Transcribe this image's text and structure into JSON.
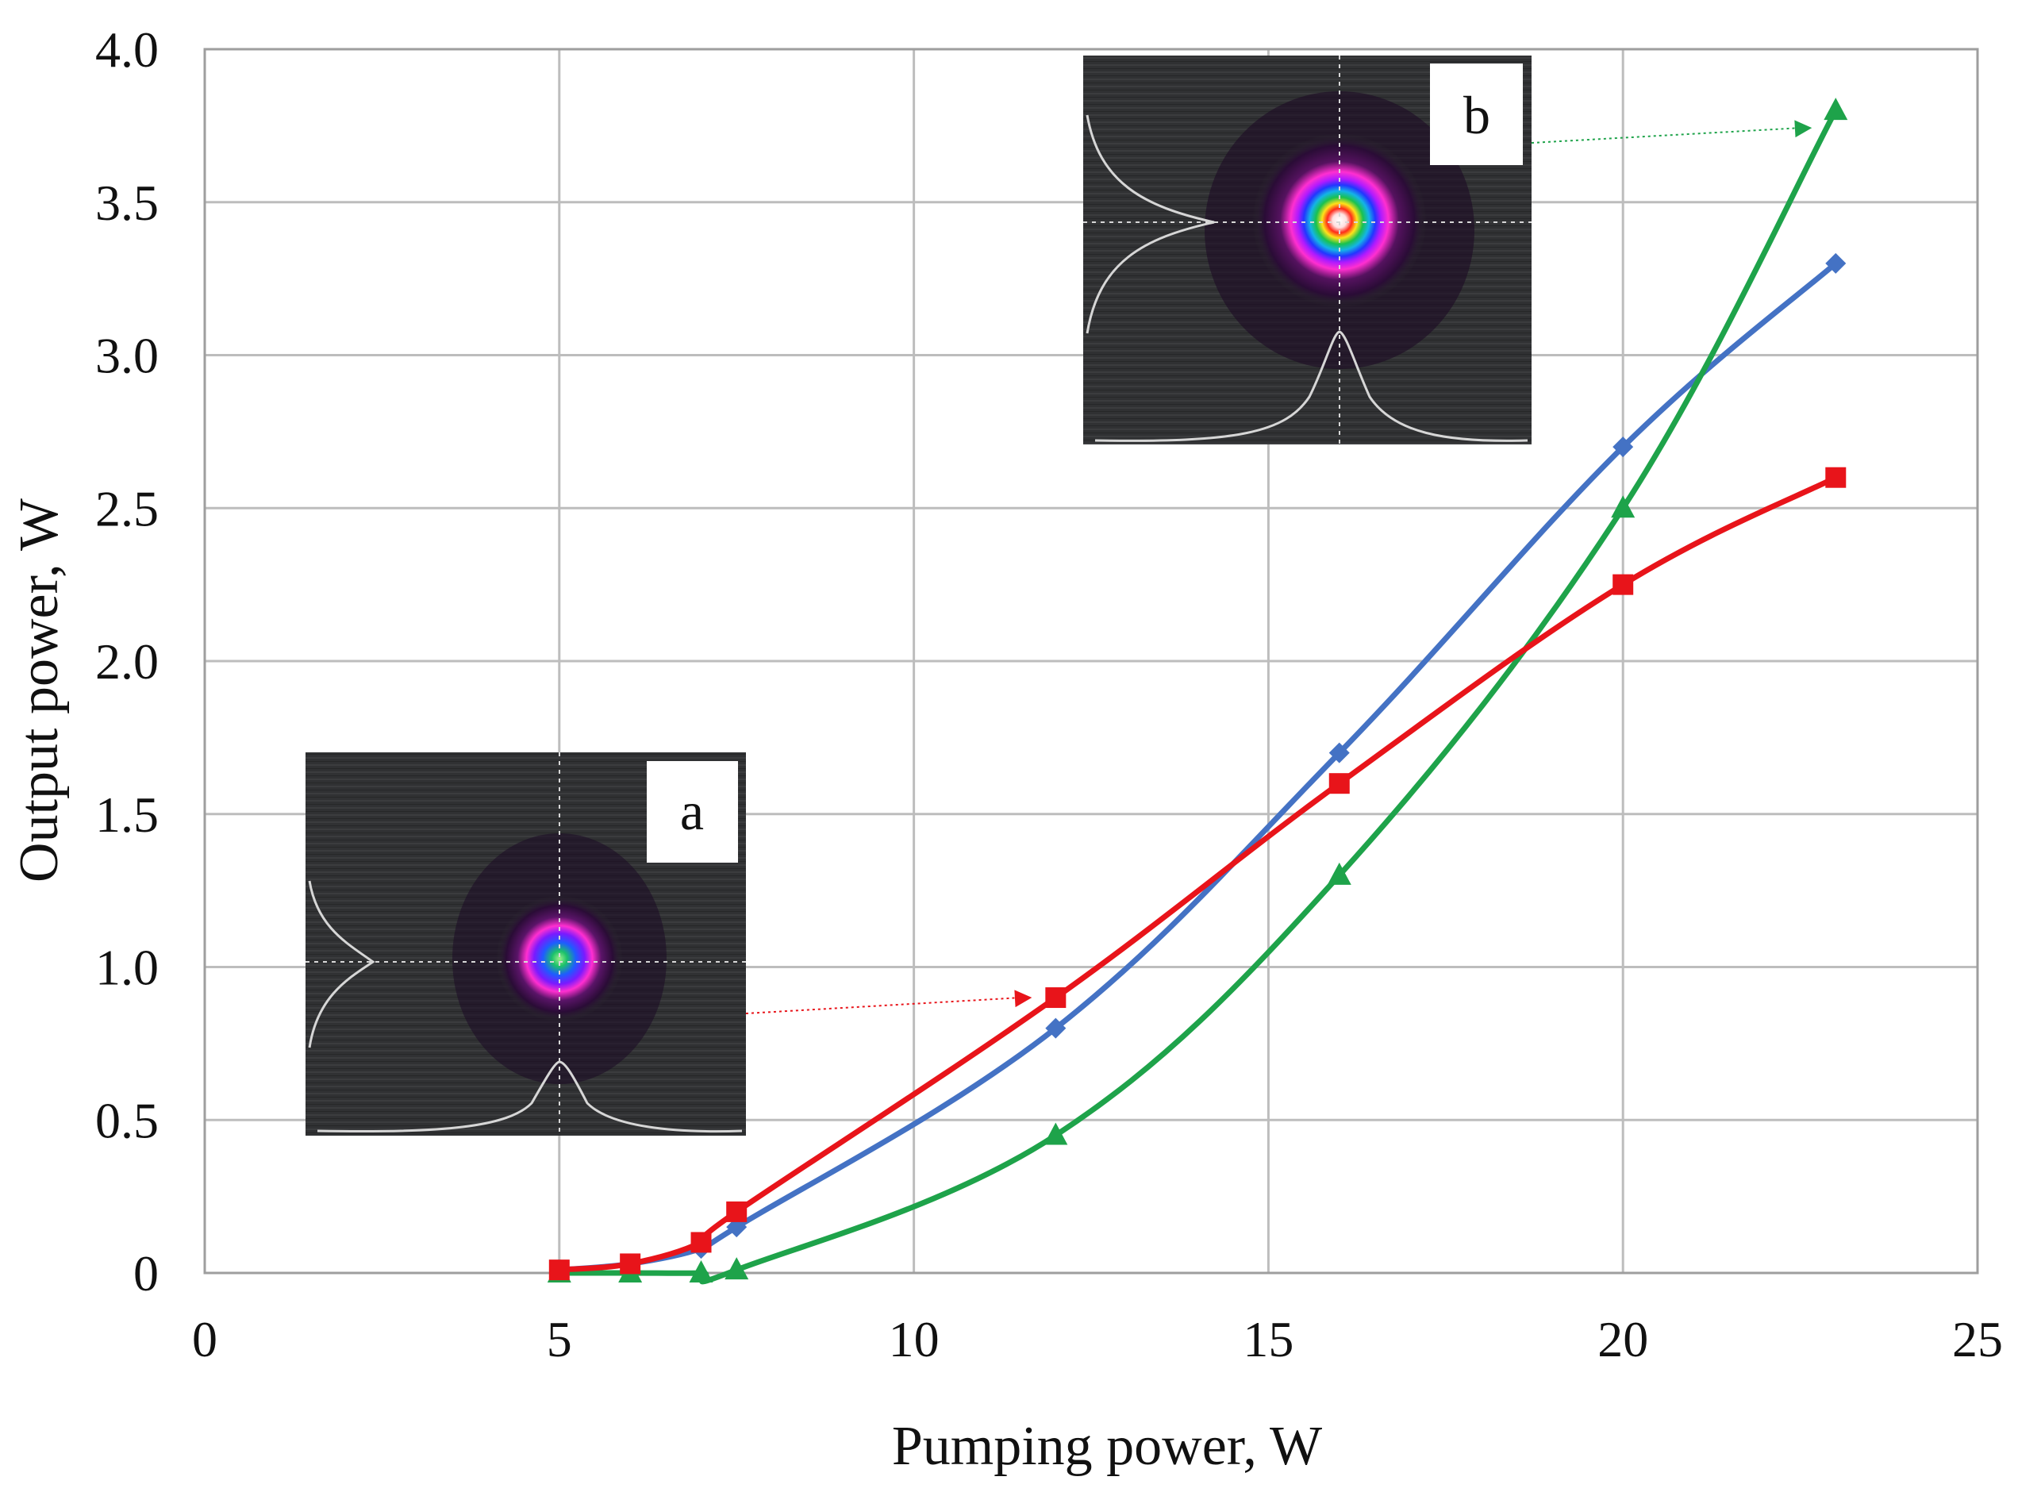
{
  "chart_data": {
    "type": "line",
    "title": "",
    "xlabel": "Pumping power, W",
    "ylabel": "Output power, W",
    "xlim": [
      0,
      25
    ],
    "ylim": [
      0,
      4.0
    ],
    "grid": true,
    "x_ticks": [
      0,
      5,
      10,
      15,
      20,
      25
    ],
    "x_tick_labels": [
      "0",
      "5",
      "10",
      "15",
      "20",
      "25"
    ],
    "y_ticks": [
      0,
      0.5,
      1.0,
      1.5,
      2.0,
      2.5,
      3.0,
      3.5,
      4.0
    ],
    "y_tick_labels": [
      "0",
      "0.5",
      "1.0",
      "1.5",
      "2.0",
      "2.5",
      "3.0",
      "3.5",
      "4.0"
    ],
    "series": [
      {
        "color": "#4472c4",
        "marker": "diamond",
        "x": [
          5,
          6,
          7,
          7.5,
          12,
          16,
          20,
          23
        ],
        "y": [
          0.01,
          0.03,
          0.08,
          0.15,
          0.8,
          1.7,
          2.7,
          3.3
        ]
      },
      {
        "color": "#e8141a",
        "marker": "square",
        "x": [
          5,
          6,
          7,
          7.5,
          12,
          16,
          20,
          23
        ],
        "y": [
          0.01,
          0.03,
          0.1,
          0.2,
          0.9,
          1.6,
          2.25,
          2.6
        ]
      },
      {
        "color": "#1ea34a",
        "marker": "triangle",
        "x": [
          5,
          6,
          7,
          7.5,
          12,
          16,
          20,
          23
        ],
        "y": [
          0,
          0,
          0,
          0.01,
          0.45,
          1.3,
          2.5,
          3.8
        ]
      }
    ],
    "insets": [
      {
        "label": "a",
        "description": "beam profile",
        "points_to_series": 1,
        "points_to_x": 12,
        "points_to_y": 0.9
      },
      {
        "label": "b",
        "description": "beam profile",
        "points_to_series": 2,
        "points_to_x": 23,
        "points_to_y": 3.8
      }
    ]
  }
}
